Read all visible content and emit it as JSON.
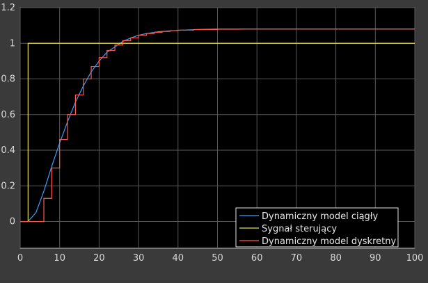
{
  "chart_data": {
    "type": "line",
    "title": "",
    "xlabel": "",
    "ylabel": "",
    "xlim": [
      0,
      100
    ],
    "ylim": [
      -0.15,
      1.2
    ],
    "xticks": [
      0,
      10,
      20,
      30,
      40,
      50,
      60,
      70,
      80,
      90,
      100
    ],
    "xtick_labels": [
      "0",
      "10",
      "20",
      "30",
      "40",
      "50",
      "60",
      "70",
      "80",
      "90",
      "100"
    ],
    "yticks": [
      0,
      0.2,
      0.4,
      0.6,
      0.8,
      1,
      1.2
    ],
    "ytick_labels": [
      "0",
      "0.2",
      "0.4",
      "0.6",
      "0.8",
      "1",
      "1.2"
    ],
    "grid": true,
    "legend_position": "bottom-right",
    "background": "#000000",
    "figure_background": "#3a3a3a",
    "grid_color": "#5a5a5a",
    "series": [
      {
        "name": "Dynamiczny model ciągły",
        "color": "#3aa0ff",
        "style": "line",
        "x": [
          0,
          2,
          4,
          6,
          8,
          10,
          12,
          14,
          16,
          18,
          20,
          22,
          24,
          26,
          28,
          30,
          32,
          35,
          38,
          42,
          46,
          50,
          55,
          60,
          70,
          80,
          90,
          100
        ],
        "y": [
          0,
          0,
          0.05,
          0.17,
          0.31,
          0.44,
          0.56,
          0.67,
          0.76,
          0.84,
          0.9,
          0.95,
          0.98,
          1.01,
          1.03,
          1.045,
          1.055,
          1.065,
          1.07,
          1.075,
          1.078,
          1.08,
          1.08,
          1.08,
          1.08,
          1.08,
          1.08,
          1.08
        ]
      },
      {
        "name": "Sygnał sterujący",
        "color": "#e6e14b",
        "style": "step",
        "x": [
          0,
          2,
          2,
          100
        ],
        "y": [
          0,
          0,
          1,
          1
        ]
      },
      {
        "name": "Dynamiczny model dyskretny",
        "color": "#ff5a4a",
        "style": "step",
        "x": [
          0,
          6,
          8,
          10,
          12,
          14,
          16,
          18,
          20,
          22,
          24,
          26,
          28,
          30,
          32,
          34,
          36,
          38,
          40,
          44,
          50,
          56,
          100
        ],
        "y": [
          0,
          0.13,
          0.3,
          0.46,
          0.6,
          0.71,
          0.8,
          0.87,
          0.92,
          0.96,
          0.99,
          1.015,
          1.03,
          1.045,
          1.055,
          1.062,
          1.067,
          1.071,
          1.074,
          1.077,
          1.079,
          1.08,
          1.08
        ]
      }
    ]
  }
}
